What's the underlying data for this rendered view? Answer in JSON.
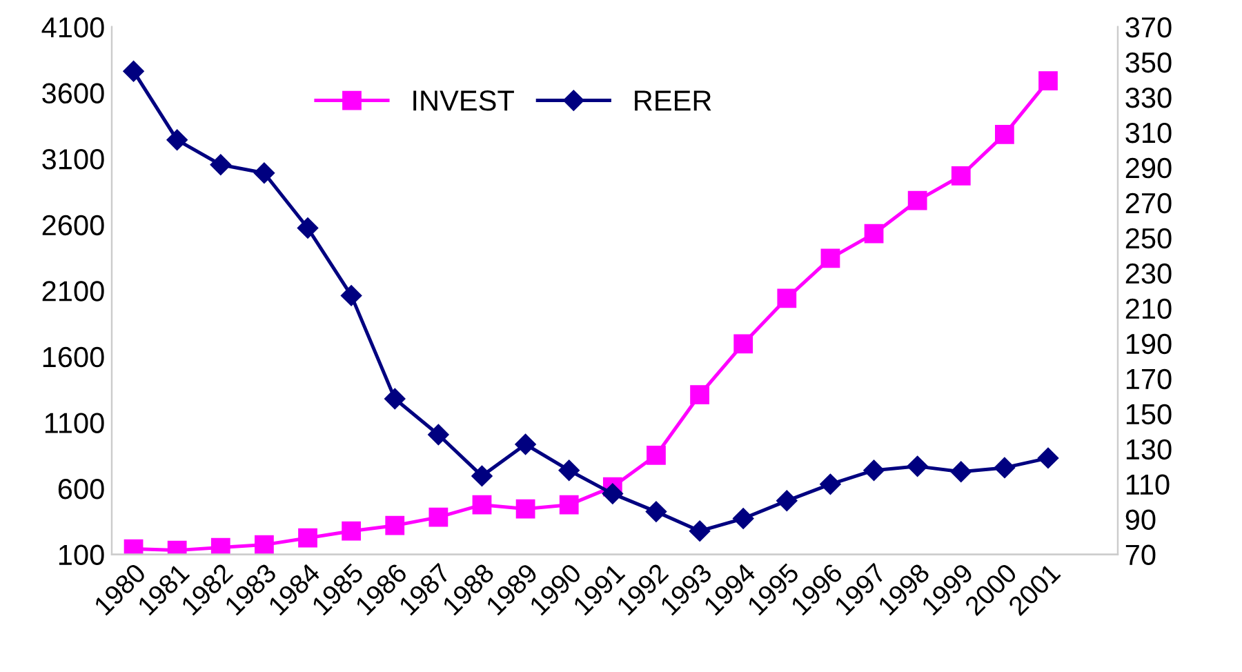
{
  "chart_data": {
    "type": "line",
    "categories": [
      "1980",
      "1981",
      "1982",
      "1983",
      "1984",
      "1985",
      "1986",
      "1987",
      "1988",
      "1989",
      "1990",
      "1991",
      "1992",
      "1993",
      "1994",
      "1995",
      "1996",
      "1997",
      "1998",
      "1999",
      "2000",
      "2001"
    ],
    "series": [
      {
        "name": "INVEST",
        "color": "#ff00ff",
        "marker": "square",
        "values": [
          142,
          131,
          152,
          173,
          225,
          277,
          319,
          382,
          476,
          445,
          476,
          612,
          852,
          1311,
          1697,
          2042,
          2345,
          2532,
          2783,
          2971,
          3284,
          3691
        ]
      },
      {
        "name": "REER",
        "color": "#000080",
        "marker": "diamond",
        "axis": "y2",
        "values": [
          344.8,
          305.7,
          291.6,
          286.9,
          255.6,
          217.2,
          158.5,
          138.1,
          114.6,
          132.6,
          117.8,
          104.5,
          94.3,
          83.3,
          90.4,
          100.5,
          109.9,
          117.8,
          120.1,
          117.0,
          119.3,
          124.8
        ]
      }
    ],
    "ylim": [
      100,
      4100
    ],
    "yticks": [
      100,
      600,
      1100,
      1600,
      2100,
      2600,
      3100,
      3600,
      4100
    ],
    "y2lim": [
      70,
      370
    ],
    "y2ticks": [
      70,
      90,
      110,
      130,
      150,
      170,
      190,
      210,
      230,
      250,
      270,
      290,
      310,
      330,
      350,
      370
    ],
    "grid": false,
    "legend": "top",
    "line_style": "solid"
  }
}
